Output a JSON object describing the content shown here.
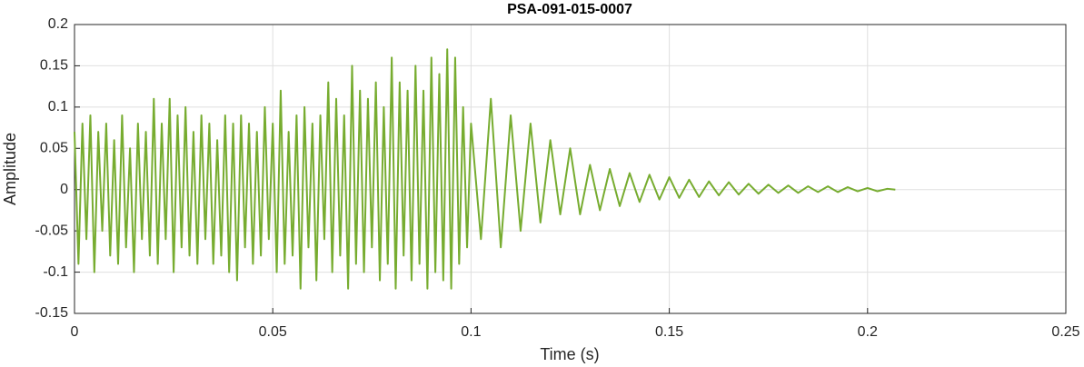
{
  "chart_data": {
    "type": "line",
    "title": "PSA-091-015-0007",
    "x_label": "Time (s)",
    "y_label": "Amplitude",
    "color": "#77ac30",
    "grid": true,
    "xlim": [
      0,
      0.25
    ],
    "xticks": [
      0,
      0.05,
      0.1,
      0.15,
      0.2,
      0.25
    ],
    "ylim": [
      -0.15,
      0.2
    ],
    "yticks": [
      -0.15,
      -0.1,
      -0.05,
      0,
      0.05,
      0.1,
      0.15,
      0.2
    ],
    "x": [
      0,
      0.001,
      0.002,
      0.003,
      0.004,
      0.005,
      0.006,
      0.007,
      0.008,
      0.009,
      0.01,
      0.011,
      0.012,
      0.013,
      0.014,
      0.015,
      0.016,
      0.017,
      0.018,
      0.019,
      0.02,
      0.021,
      0.022,
      0.023,
      0.024,
      0.025,
      0.026,
      0.027,
      0.028,
      0.029,
      0.03,
      0.031,
      0.032,
      0.033,
      0.034,
      0.035,
      0.036,
      0.037,
      0.038,
      0.039,
      0.04,
      0.041,
      0.042,
      0.043,
      0.044,
      0.045,
      0.046,
      0.047,
      0.048,
      0.049,
      0.05,
      0.051,
      0.052,
      0.053,
      0.054,
      0.055,
      0.056,
      0.057,
      0.058,
      0.059,
      0.06,
      0.061,
      0.062,
      0.063,
      0.064,
      0.065,
      0.066,
      0.067,
      0.068,
      0.069,
      0.07,
      0.071,
      0.072,
      0.073,
      0.074,
      0.075,
      0.076,
      0.077,
      0.078,
      0.079,
      0.08,
      0.081,
      0.082,
      0.083,
      0.084,
      0.085,
      0.086,
      0.087,
      0.088,
      0.089,
      0.09,
      0.091,
      0.092,
      0.093,
      0.094,
      0.095,
      0.096,
      0.097,
      0.098,
      0.099,
      0.1,
      0.1025,
      0.105,
      0.1075,
      0.11,
      0.1125,
      0.115,
      0.1175,
      0.12,
      0.1225,
      0.125,
      0.1275,
      0.13,
      0.1325,
      0.135,
      0.1375,
      0.14,
      0.1425,
      0.145,
      0.1475,
      0.15,
      0.1525,
      0.155,
      0.1575,
      0.16,
      0.1625,
      0.165,
      0.1675,
      0.17,
      0.1725,
      0.175,
      0.1775,
      0.18,
      0.1825,
      0.185,
      0.1875,
      0.19,
      0.1925,
      0.195,
      0.1975,
      0.2,
      0.2025,
      0.205,
      0.207
    ],
    "series": [
      {
        "name": "Amplitude",
        "color": "#77ac30",
        "values": [
          0.07,
          -0.09,
          0.08,
          -0.06,
          0.09,
          -0.1,
          0.07,
          -0.05,
          0.08,
          -0.08,
          0.06,
          -0.09,
          0.09,
          -0.07,
          0.05,
          -0.1,
          0.08,
          -0.06,
          0.07,
          -0.08,
          0.11,
          -0.09,
          0.08,
          -0.06,
          0.11,
          -0.1,
          0.09,
          -0.07,
          0.1,
          -0.08,
          0.07,
          -0.09,
          0.09,
          -0.06,
          0.08,
          -0.09,
          0.06,
          -0.08,
          0.09,
          -0.1,
          0.08,
          -0.11,
          0.09,
          -0.07,
          0.08,
          -0.09,
          0.07,
          -0.08,
          0.1,
          -0.06,
          0.08,
          -0.1,
          0.12,
          -0.09,
          0.07,
          -0.08,
          0.09,
          -0.12,
          0.1,
          -0.07,
          0.08,
          -0.11,
          0.09,
          -0.06,
          0.13,
          -0.1,
          0.11,
          -0.08,
          0.09,
          -0.12,
          0.15,
          -0.09,
          0.12,
          -0.1,
          0.11,
          -0.07,
          0.13,
          -0.11,
          0.1,
          -0.09,
          0.16,
          -0.12,
          0.13,
          -0.08,
          0.12,
          -0.11,
          0.15,
          -0.09,
          0.12,
          -0.12,
          0.16,
          -0.1,
          0.14,
          -0.11,
          0.17,
          -0.12,
          0.16,
          -0.09,
          0.1,
          -0.07,
          0.08,
          -0.06,
          0.11,
          -0.07,
          0.09,
          -0.05,
          0.08,
          -0.04,
          0.06,
          -0.03,
          0.05,
          -0.03,
          0.03,
          -0.025,
          0.025,
          -0.02,
          0.02,
          -0.015,
          0.018,
          -0.012,
          0.015,
          -0.01,
          0.012,
          -0.009,
          0.01,
          -0.007,
          0.009,
          -0.006,
          0.007,
          -0.005,
          0.006,
          -0.004,
          0.005,
          -0.004,
          0.004,
          -0.003,
          0.004,
          -0.003,
          0.003,
          -0.002,
          0.002,
          -0.002,
          0.001,
          0
        ]
      }
    ]
  }
}
